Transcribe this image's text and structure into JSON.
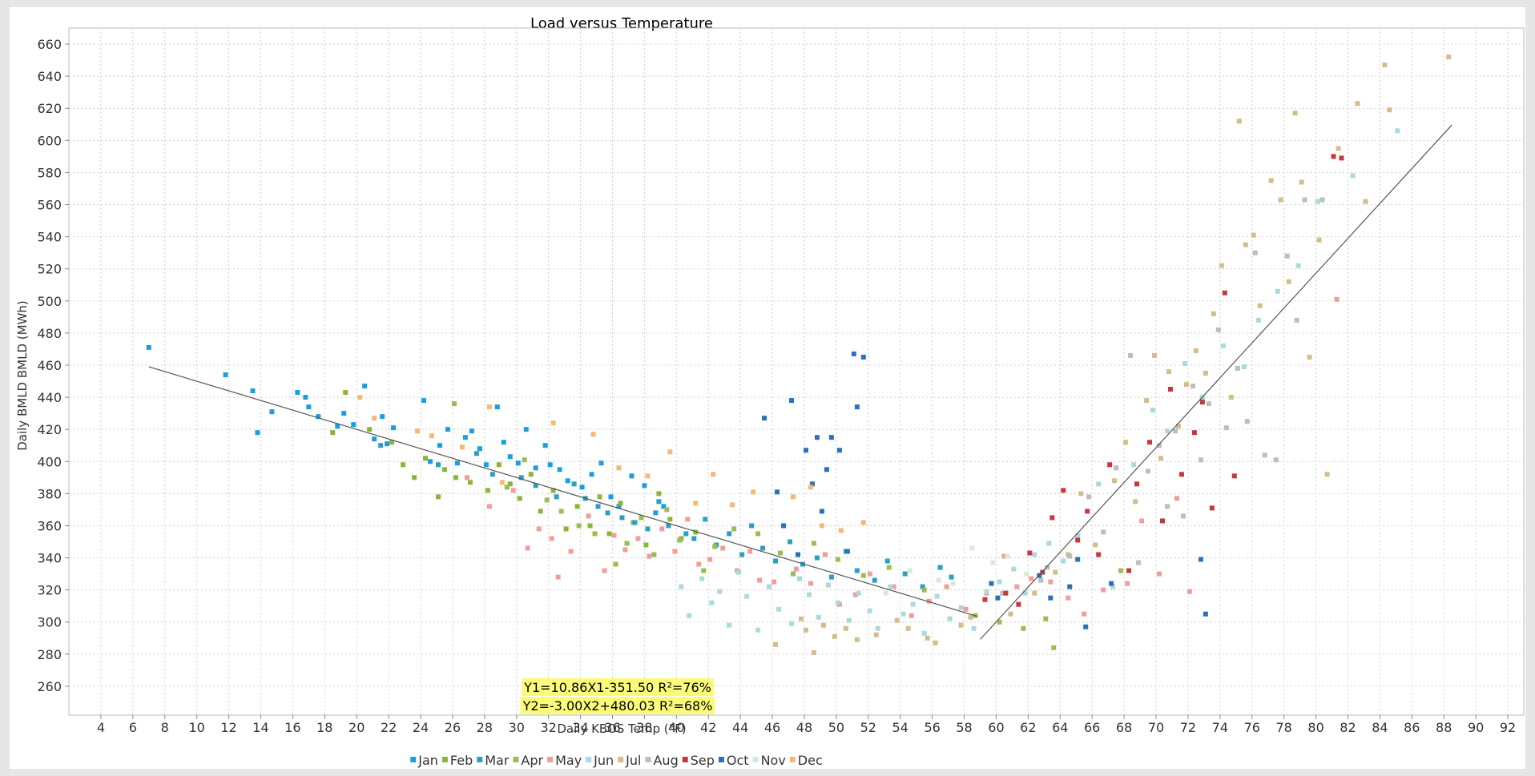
{
  "chart_data": {
    "type": "scatter",
    "title": "Load versus Temperature",
    "xlabel": "Daily KBOS Temp (°F)",
    "ylabel": "Daily BMLD BMLD (MWh)",
    "xlim": [
      2,
      93
    ],
    "ylim": [
      242,
      670
    ],
    "xticks": [
      4,
      6,
      8,
      10,
      12,
      14,
      16,
      18,
      20,
      22,
      24,
      26,
      28,
      30,
      32,
      34,
      36,
      38,
      40,
      42,
      44,
      46,
      48,
      50,
      52,
      54,
      56,
      58,
      60,
      62,
      64,
      66,
      68,
      70,
      72,
      74,
      76,
      78,
      80,
      82,
      84,
      86,
      88,
      90,
      92
    ],
    "yticks": [
      260,
      280,
      300,
      320,
      340,
      360,
      380,
      400,
      420,
      440,
      460,
      480,
      500,
      520,
      540,
      560,
      580,
      600,
      620,
      640,
      660
    ],
    "grid": true,
    "legend_position": "bottom",
    "series": [
      {
        "name": "Jan",
        "color": "#1a9fdc",
        "x": [
          7,
          11.8,
          13.5,
          13.8,
          14.7,
          16.3,
          16.8,
          17,
          17.6,
          18.8,
          19.2,
          19.8,
          20.5,
          21.1,
          21.6,
          21.9,
          22.3,
          24.2,
          24.6,
          25.2,
          25.7,
          26.3,
          26.8,
          27.2,
          27.7,
          28.1,
          28.8,
          29.2,
          29.6,
          30.1,
          30.6,
          31.2,
          31.8,
          32.1,
          32.7,
          33.2,
          34.1,
          34.7,
          35.3,
          35.9,
          36.4,
          37.2,
          38,
          38.7,
          39.2
        ],
        "y": [
          471,
          454,
          444,
          418,
          431,
          443,
          440,
          434,
          428,
          422,
          430,
          423,
          447,
          414,
          428,
          411,
          421,
          438,
          400,
          410,
          420,
          399,
          415,
          419,
          408,
          398,
          434,
          412,
          403,
          399,
          420,
          396,
          410,
          398,
          395,
          388,
          384,
          392,
          399,
          378,
          372,
          391,
          385,
          368,
          372
        ]
      },
      {
        "name": "Feb",
        "color": "#8bb53a",
        "x": [
          18.5,
          19.3,
          20.8,
          22.2,
          22.9,
          23.6,
          24.3,
          25.1,
          25.5,
          26.2,
          27.1,
          28.2,
          28.9,
          29.6,
          30.2,
          30.9,
          31.5,
          32.3,
          33.1,
          33.8,
          34.6,
          35.2,
          35.8,
          36.5,
          37.3,
          38.1,
          38.9,
          39.6,
          40.3,
          41.2
        ],
        "y": [
          418,
          443,
          420,
          412,
          398,
          390,
          402,
          378,
          395,
          390,
          387,
          382,
          398,
          386,
          377,
          392,
          369,
          382,
          358,
          372,
          360,
          378,
          355,
          374,
          362,
          348,
          380,
          364,
          352,
          356
        ]
      },
      {
        "name": "Mar",
        "color": "#2b9ec2",
        "x": [
          21.5,
          25.1,
          27.5,
          28.5,
          30.3,
          31.2,
          32.5,
          33.6,
          34.3,
          35.1,
          35.7,
          36.6,
          37.4,
          38.2,
          38.9,
          39.5,
          40.6,
          41.1,
          41.8,
          42.5,
          43.3,
          44.1,
          44.7,
          45.4,
          46.2,
          47.1,
          47.9,
          48.8,
          49.7,
          50.6,
          51.3,
          52.4,
          53.2,
          54.3,
          55.4,
          56.5,
          57.2
        ],
        "y": [
          410,
          398,
          405,
          392,
          390,
          385,
          378,
          386,
          377,
          372,
          368,
          365,
          362,
          358,
          375,
          360,
          355,
          352,
          364,
          348,
          355,
          342,
          360,
          346,
          338,
          350,
          336,
          340,
          328,
          344,
          332,
          326,
          338,
          330,
          322,
          334,
          328
        ]
      },
      {
        "name": "Apr",
        "color": "#9abd52",
        "x": [
          26.1,
          29.4,
          30.5,
          31.9,
          32.8,
          33.9,
          34.9,
          36.2,
          36.9,
          37.8,
          38.6,
          39.4,
          40.2,
          41.7,
          42.4,
          43.6,
          45.1,
          46.5,
          47.3,
          48.6,
          50.1,
          51.7,
          53.3,
          55.5,
          58.7,
          60.2,
          61.7,
          63.1,
          63.6,
          67.8
        ],
        "y": [
          436,
          384,
          401,
          376,
          369,
          360,
          355,
          336,
          349,
          365,
          342,
          370,
          351,
          332,
          347,
          358,
          355,
          343,
          330,
          349,
          339,
          329,
          334,
          320,
          304,
          300,
          296,
          302,
          284,
          332
        ]
      },
      {
        "name": "May",
        "color": "#f29c9c",
        "x": [
          26.9,
          28.3,
          29.8,
          30.7,
          31.4,
          32.2,
          32.6,
          33.4,
          34.5,
          35.5,
          36.1,
          36.8,
          37.6,
          38.3,
          39.1,
          39.9,
          40.7,
          41.4,
          42.1,
          42.9,
          43.8,
          44.6,
          45.2,
          46.1,
          47.5,
          48.4,
          49.3,
          50.2,
          51.2,
          52.1,
          53.6,
          54.7,
          55.8,
          56.9,
          58.1,
          59.4,
          60.5,
          61.3,
          62.2,
          63.4,
          64.5,
          65.5,
          66.7,
          68.2,
          69.1,
          70.2,
          71.3,
          72.1,
          81.3
        ],
        "y": [
          390,
          372,
          382,
          346,
          358,
          352,
          328,
          344,
          366,
          332,
          354,
          345,
          352,
          341,
          358,
          344,
          364,
          336,
          339,
          346,
          332,
          344,
          326,
          325,
          333,
          324,
          342,
          311,
          317,
          330,
          322,
          304,
          313,
          322,
          308,
          318,
          341,
          322,
          327,
          325,
          315,
          305,
          320,
          324,
          363,
          330,
          377,
          319,
          501
        ]
      },
      {
        "name": "Jun",
        "color": "#a8dadf",
        "x": [
          40.3,
          40.8,
          41.6,
          42.2,
          42.7,
          43.3,
          43.9,
          44.4,
          45.1,
          45.8,
          46.4,
          47.2,
          47.7,
          48.3,
          48.9,
          49.5,
          50.1,
          50.8,
          51.4,
          52.1,
          52.6,
          53.4,
          54.2,
          54.8,
          55.5,
          56.3,
          57.1,
          57.8,
          58.6,
          59.4,
          60.2,
          61.1,
          61.8,
          62.4,
          63.3,
          64.2,
          65.1,
          66.4,
          67.3,
          68.6,
          69.8,
          70.7,
          71.8,
          72.9,
          74.2,
          75.5,
          76.4,
          77.6,
          78.9,
          80.1,
          82.3,
          85.1
        ],
        "y": [
          322,
          304,
          327,
          312,
          319,
          298,
          331,
          316,
          295,
          322,
          308,
          299,
          327,
          317,
          303,
          323,
          312,
          301,
          318,
          307,
          296,
          322,
          305,
          311,
          293,
          316,
          302,
          309,
          296,
          319,
          325,
          333,
          318,
          342,
          349,
          338,
          354,
          386,
          322,
          398,
          432,
          419,
          461,
          440,
          472,
          459,
          488,
          506,
          522,
          562,
          578,
          606
        ]
      },
      {
        "name": "Jul",
        "color": "#d4be88",
        "x": [
          46.2,
          47.8,
          48.1,
          48.6,
          49.2,
          49.9,
          50.6,
          51.3,
          52.5,
          53.8,
          54.5,
          55.7,
          56.2,
          57.8,
          58.4,
          60.9,
          62.4,
          63.7,
          64.5,
          65.3,
          66.2,
          67.4,
          68.1,
          68.7,
          69.4,
          69.9,
          70.3,
          70.8,
          71.4,
          71.9,
          72.5,
          73.1,
          73.6,
          74.1,
          74.7,
          75.2,
          75.6,
          76.1,
          76.5,
          77.2,
          77.8,
          78.3,
          78.7,
          79.1,
          79.6,
          80.2,
          80.7,
          81.4,
          82.6,
          83.1,
          84.3,
          84.6,
          88.3
        ],
        "y": [
          286,
          302,
          295,
          281,
          298,
          291,
          296,
          289,
          292,
          301,
          296,
          290,
          287,
          298,
          303,
          305,
          318,
          331,
          342,
          380,
          348,
          388,
          412,
          375,
          438,
          466,
          402,
          456,
          422,
          448,
          469,
          455,
          492,
          522,
          440,
          612,
          535,
          541,
          497,
          575,
          563,
          512,
          617,
          574,
          465,
          538,
          392,
          595,
          623,
          562,
          647,
          619,
          652
        ]
      },
      {
        "name": "Aug",
        "color": "#bdbdbd",
        "x": [
          60.4,
          62.8,
          63.2,
          64.6,
          65.8,
          66.7,
          67.5,
          68.4,
          68.9,
          69.5,
          70.2,
          70.7,
          71.2,
          71.7,
          72.3,
          72.8,
          73.3,
          73.9,
          74.4,
          75.1,
          75.7,
          76.2,
          76.8,
          77.5,
          78.2,
          78.8,
          79.3,
          80.4
        ],
        "y": [
          318,
          326,
          334,
          341,
          378,
          356,
          396,
          466,
          337,
          394,
          410,
          372,
          419,
          366,
          447,
          401,
          436,
          482,
          421,
          458,
          425,
          530,
          404,
          401,
          528,
          488,
          563,
          563
        ]
      },
      {
        "name": "Sep",
        "color": "#c2393e",
        "x": [
          59.3,
          60.6,
          61.4,
          62.1,
          62.9,
          63.5,
          64.2,
          65.1,
          65.7,
          66.4,
          67.1,
          68.3,
          68.8,
          69.6,
          70.4,
          70.9,
          71.6,
          72.4,
          72.9,
          73.5,
          74.3,
          74.9,
          81.1,
          81.6
        ],
        "y": [
          314,
          318,
          311,
          343,
          331,
          365,
          382,
          351,
          369,
          342,
          398,
          332,
          386,
          412,
          363,
          445,
          392,
          418,
          437,
          371,
          505,
          391,
          590,
          589
        ]
      },
      {
        "name": "Oct",
        "color": "#2d70b7",
        "x": [
          45.5,
          46.3,
          46.7,
          47.2,
          47.6,
          48.1,
          48.5,
          48.8,
          49.1,
          49.4,
          49.7,
          50.2,
          50.7,
          51.1,
          51.3,
          51.7,
          59.7,
          60.1,
          62.7,
          63.4,
          64.6,
          65.1,
          65.6,
          67.2,
          72.8,
          73.1
        ],
        "y": [
          427,
          381,
          360,
          438,
          342,
          407,
          386,
          415,
          369,
          395,
          415,
          407,
          344,
          467,
          434,
          465,
          324,
          315,
          329,
          315,
          322,
          339,
          297,
          324,
          339,
          305
        ]
      },
      {
        "name": "Nov",
        "color": "#d4ecd8",
        "x": [
          53.1,
          54.6,
          56.4,
          57.3,
          58.5,
          59.8,
          60.7,
          61.9
        ],
        "y": [
          318,
          332,
          326,
          324,
          346,
          337,
          341,
          330
        ]
      },
      {
        "name": "Dec",
        "color": "#f5b877",
        "x": [
          20.2,
          21.1,
          23.8,
          24.7,
          26.6,
          28.3,
          29.1,
          32.3,
          34.8,
          36.4,
          38.2,
          39.6,
          41.2,
          42.3,
          43.5,
          44.8,
          47.3,
          48.4,
          49.1,
          50.3,
          51.7
        ],
        "y": [
          440,
          427,
          419,
          416,
          409,
          434,
          387,
          424,
          417,
          396,
          391,
          406,
          374,
          392,
          373,
          381,
          378,
          384,
          360,
          357,
          362
        ]
      }
    ],
    "trendlines": [
      {
        "label": "Y1=10.86X1-351.50 R²=76%",
        "x": [
          59,
          88.5
        ],
        "y": [
          289.2,
          609.6
        ]
      },
      {
        "label": "Y2=-3.00X2+480.03 R²=68%",
        "x": [
          7,
          58.8
        ],
        "y": [
          459.0,
          303.6
        ]
      }
    ]
  }
}
